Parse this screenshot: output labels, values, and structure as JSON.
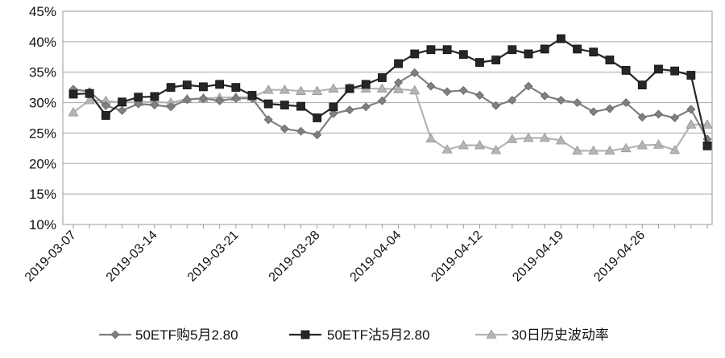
{
  "chart_data": {
    "type": "line",
    "ylim": [
      0.1,
      0.45
    ],
    "y_ticks": [
      0.1,
      0.15,
      0.2,
      0.25,
      0.3,
      0.35,
      0.4,
      0.45
    ],
    "y_tick_labels": [
      "10%",
      "15%",
      "20%",
      "25%",
      "30%",
      "35%",
      "40%",
      "45%"
    ],
    "x_tick_labels": [
      "2019-03-07",
      "2019-03-14",
      "2019-03-21",
      "2019-03-28",
      "2019-04-04",
      "2019-04-12",
      "2019-04-19",
      "2019-04-26"
    ],
    "grid": "horizontal",
    "legend_position": "bottom",
    "x": [
      "2019-03-07",
      "2019-03-08",
      "2019-03-11",
      "2019-03-12",
      "2019-03-13",
      "2019-03-14",
      "2019-03-15",
      "2019-03-18",
      "2019-03-19",
      "2019-03-20",
      "2019-03-21",
      "2019-03-22",
      "2019-03-25",
      "2019-03-26",
      "2019-03-27",
      "2019-03-28",
      "2019-03-29",
      "2019-04-01",
      "2019-04-02",
      "2019-04-03",
      "2019-04-04",
      "2019-04-08",
      "2019-04-09",
      "2019-04-10",
      "2019-04-11",
      "2019-04-12",
      "2019-04-15",
      "2019-04-16",
      "2019-04-17",
      "2019-04-18",
      "2019-04-19",
      "2019-04-22",
      "2019-04-23",
      "2019-04-24",
      "2019-04-25",
      "2019-04-26",
      "2019-04-29",
      "2019-04-30",
      "2019-05-06",
      "2019-05-07"
    ],
    "series": [
      {
        "name": "50ETF购5月2.80",
        "color": "#808080",
        "marker": "diamond",
        "values": [
          0.322,
          0.318,
          0.295,
          0.287,
          0.298,
          0.296,
          0.293,
          0.305,
          0.307,
          0.303,
          0.307,
          0.307,
          0.272,
          0.257,
          0.253,
          0.247,
          0.282,
          0.288,
          0.293,
          0.303,
          0.333,
          0.349,
          0.327,
          0.318,
          0.32,
          0.312,
          0.295,
          0.304,
          0.327,
          0.311,
          0.304,
          0.3,
          0.285,
          0.29,
          0.3,
          0.276,
          0.281,
          0.275,
          0.289,
          0.24
        ]
      },
      {
        "name": "50ETF沽5月2.80",
        "color": "#262626",
        "marker": "square",
        "values": [
          0.314,
          0.315,
          0.279,
          0.301,
          0.309,
          0.31,
          0.325,
          0.329,
          0.326,
          0.33,
          0.325,
          0.312,
          0.298,
          0.296,
          0.294,
          0.275,
          0.293,
          0.323,
          0.33,
          0.341,
          0.364,
          0.38,
          0.387,
          0.387,
          0.379,
          0.366,
          0.37,
          0.387,
          0.38,
          0.388,
          0.405,
          0.388,
          0.383,
          0.37,
          0.353,
          0.329,
          0.355,
          0.352,
          0.345,
          0.229
        ]
      },
      {
        "name": "30日历史波动率",
        "color": "#b4b4b4",
        "marker": "triangle",
        "values": [
          0.284,
          0.304,
          0.303,
          0.3,
          0.301,
          0.301,
          0.3,
          0.306,
          0.307,
          0.308,
          0.309,
          0.309,
          0.321,
          0.321,
          0.319,
          0.319,
          0.323,
          0.324,
          0.323,
          0.323,
          0.322,
          0.32,
          0.241,
          0.223,
          0.23,
          0.23,
          0.222,
          0.24,
          0.242,
          0.242,
          0.238,
          0.221,
          0.221,
          0.221,
          0.225,
          0.23,
          0.231,
          0.222,
          0.264,
          0.264
        ]
      }
    ]
  }
}
